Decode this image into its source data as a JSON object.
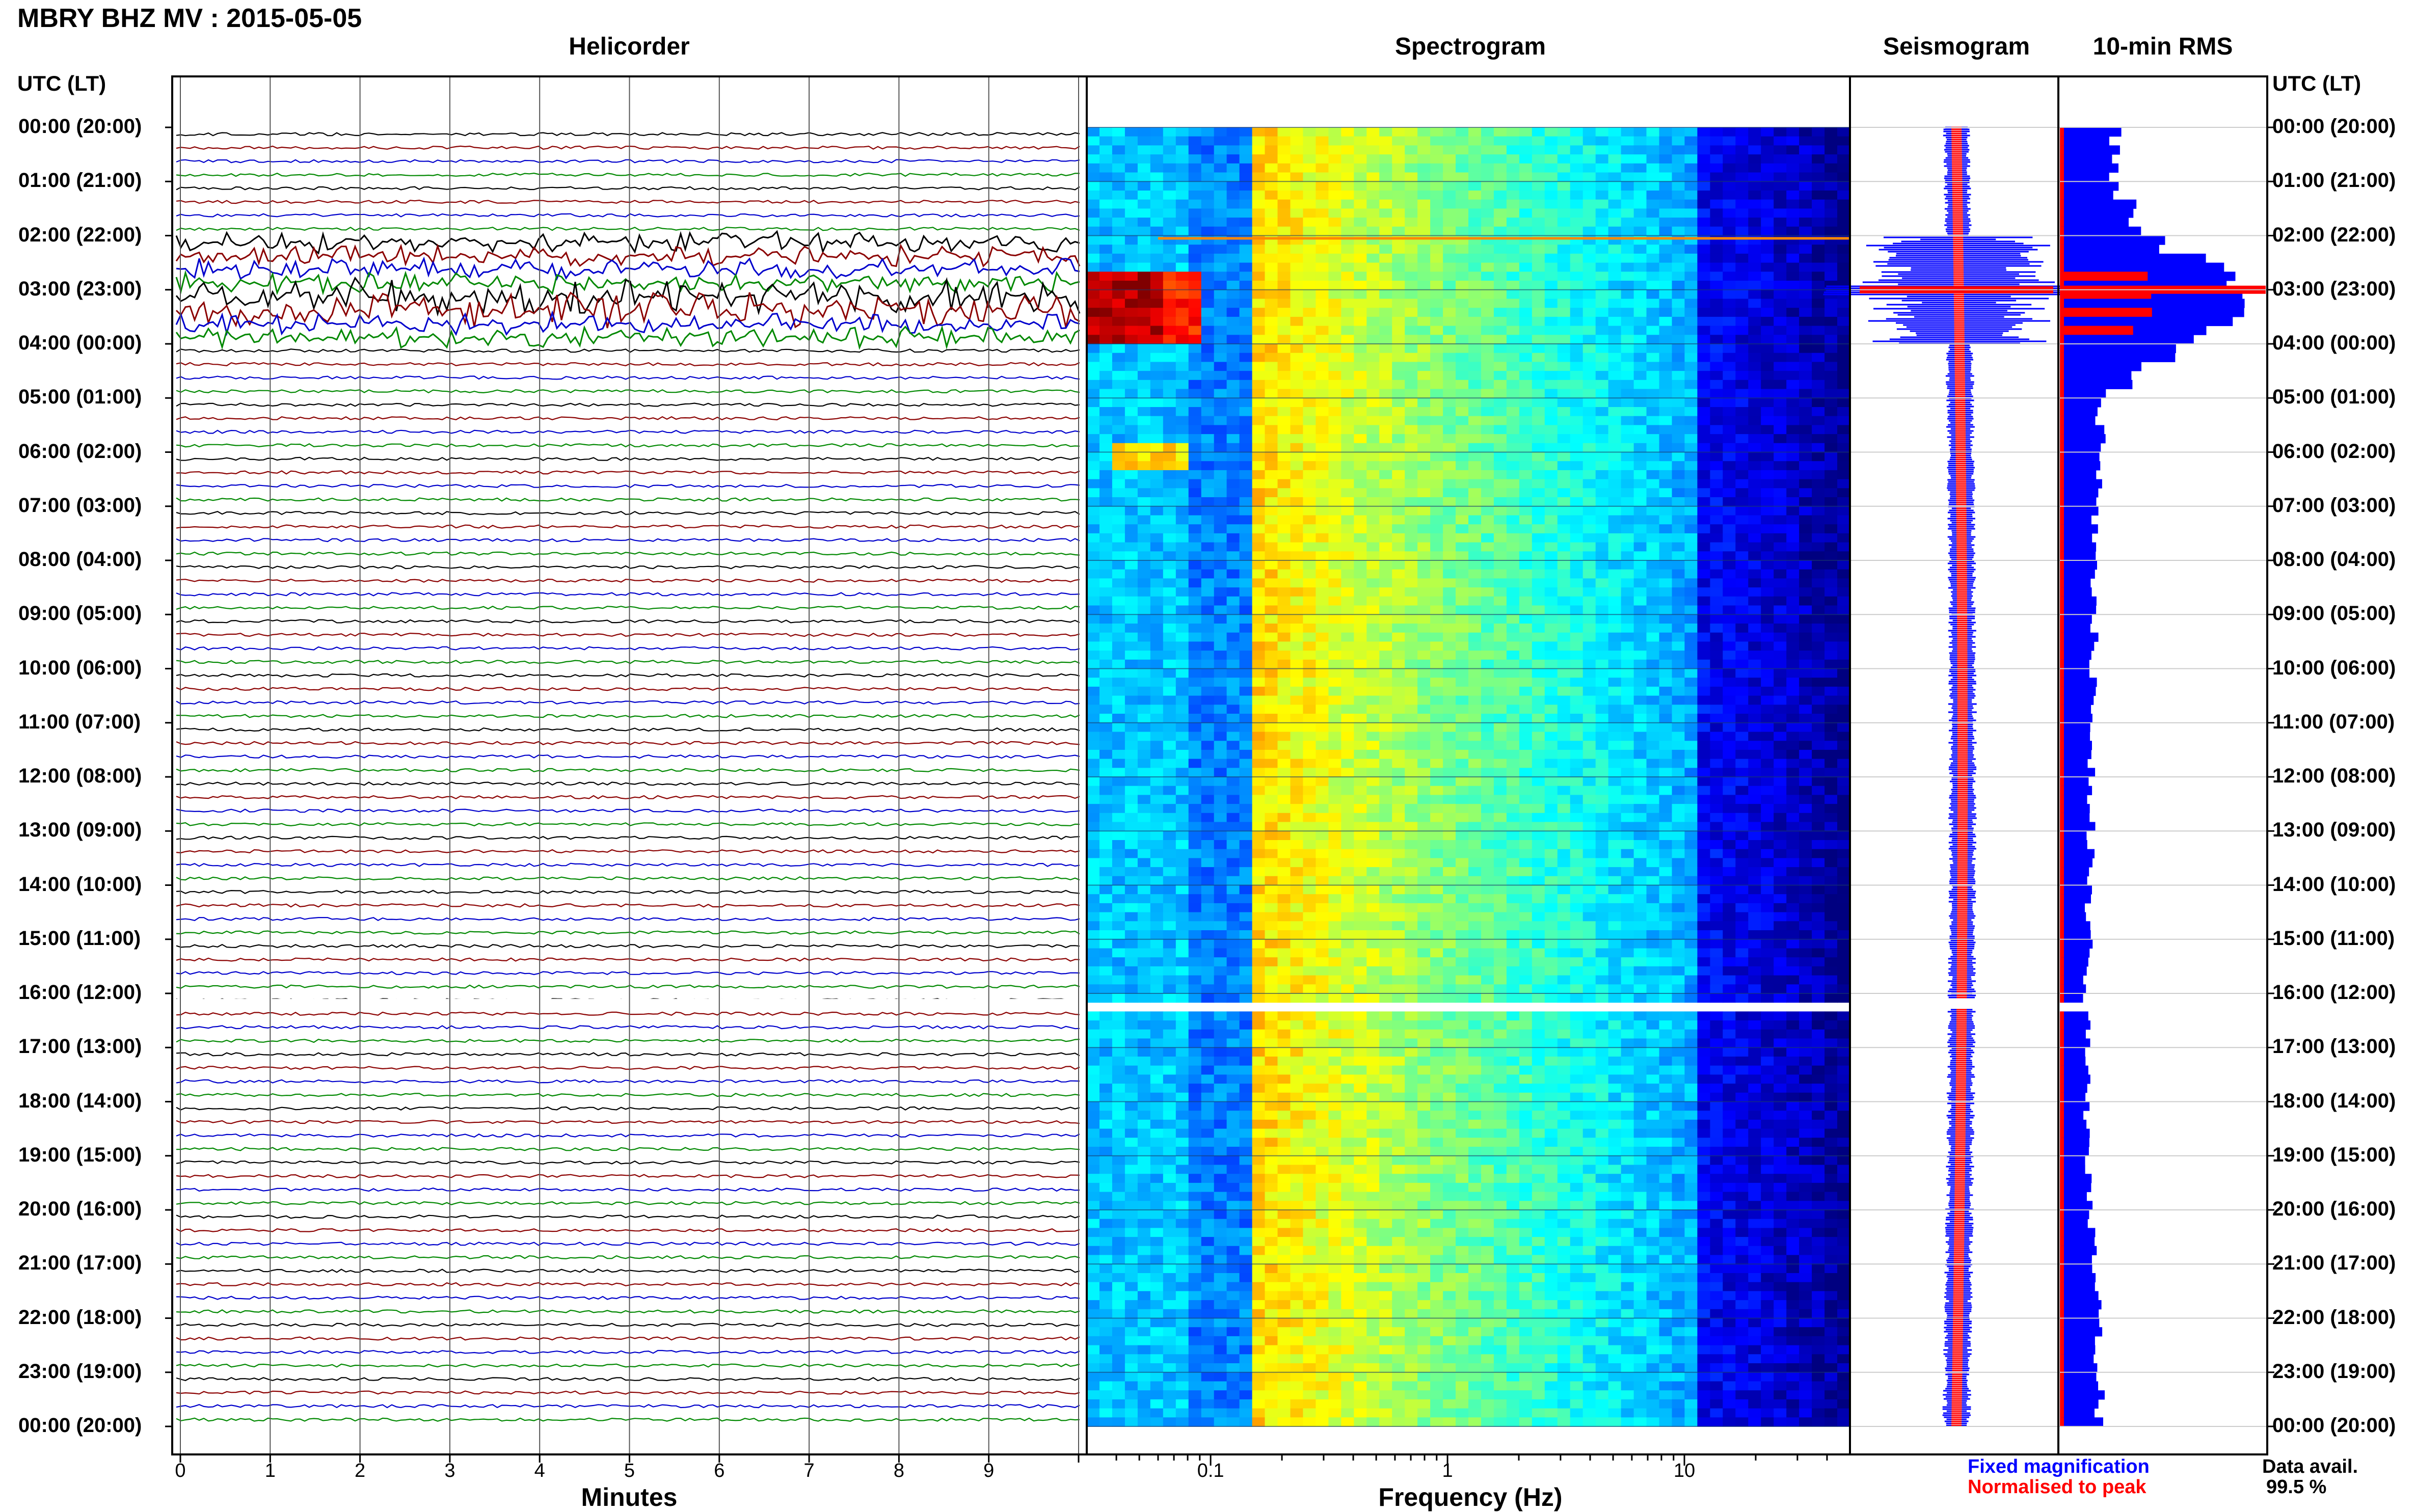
{
  "header": {
    "title": "MBRY BHZ MV : 2015-05-05"
  },
  "panels": {
    "helicorder": "Helicorder",
    "spectrogram": "Spectrogram",
    "seismogram": "Seismogram",
    "rms": "10-min RMS"
  },
  "axis_labels": {
    "utc_left": "UTC (LT)",
    "utc_right": "UTC (LT)",
    "minutes": "Minutes",
    "frequency": "Frequency (Hz)"
  },
  "time_labels": [
    "00:00 (20:00)",
    "01:00 (21:00)",
    "02:00 (22:00)",
    "03:00 (23:00)",
    "04:00 (00:00)",
    "05:00 (01:00)",
    "06:00 (02:00)",
    "07:00 (03:00)",
    "08:00 (04:00)",
    "09:00 (05:00)",
    "10:00 (06:00)",
    "11:00 (07:00)",
    "12:00 (08:00)",
    "13:00 (09:00)",
    "14:00 (10:00)",
    "15:00 (11:00)",
    "16:00 (12:00)",
    "17:00 (13:00)",
    "18:00 (14:00)",
    "19:00 (15:00)",
    "20:00 (16:00)",
    "21:00 (17:00)",
    "22:00 (18:00)",
    "23:00 (19:00)",
    "00:00 (20:00)"
  ],
  "minute_ticks": [
    "0",
    "1",
    "2",
    "3",
    "4",
    "5",
    "6",
    "7",
    "8",
    "9"
  ],
  "frequency_ticks": [
    "0.1",
    "1",
    "10"
  ],
  "legend": {
    "fixed": "Fixed magnification",
    "normalised": "Normalised to peak",
    "fixed_color": "#0000ff",
    "normalised_color": "#ff0000",
    "data_avail_label": "Data avail.",
    "data_avail_value": "99.5 %"
  },
  "chart_data": {
    "type": "heatmap",
    "title": "MBRY BHZ MV : 2015-05-05",
    "helicorder": {
      "xlabel": "Minutes",
      "xlim": [
        0,
        10
      ],
      "trace_colors": [
        "#000000",
        "#8b0000",
        "#0000cc",
        "#008800"
      ],
      "event_window_utc_hours": [
        2,
        4
      ],
      "gap_utc_hour": 16.2
    },
    "spectrogram": {
      "xlabel": "Frequency (Hz)",
      "xscale": "log",
      "xlim": [
        0.03,
        50
      ],
      "colormap": "jet"
    },
    "seismogram": {
      "series": [
        "Fixed magnification",
        "Normalised to peak"
      ]
    },
    "rms_10min": {
      "series": [
        "Fixed magnification",
        "Normalised to peak"
      ],
      "values_by_hour": [
        0.26,
        0.26,
        0.45,
        1.0,
        0.55,
        0.2,
        0.2,
        0.18,
        0.17,
        0.17,
        0.16,
        0.16,
        0.15,
        0.15,
        0.14,
        0.14,
        0.13,
        0.13,
        0.13,
        0.14,
        0.15,
        0.17,
        0.18,
        0.19,
        0.2
      ]
    }
  }
}
